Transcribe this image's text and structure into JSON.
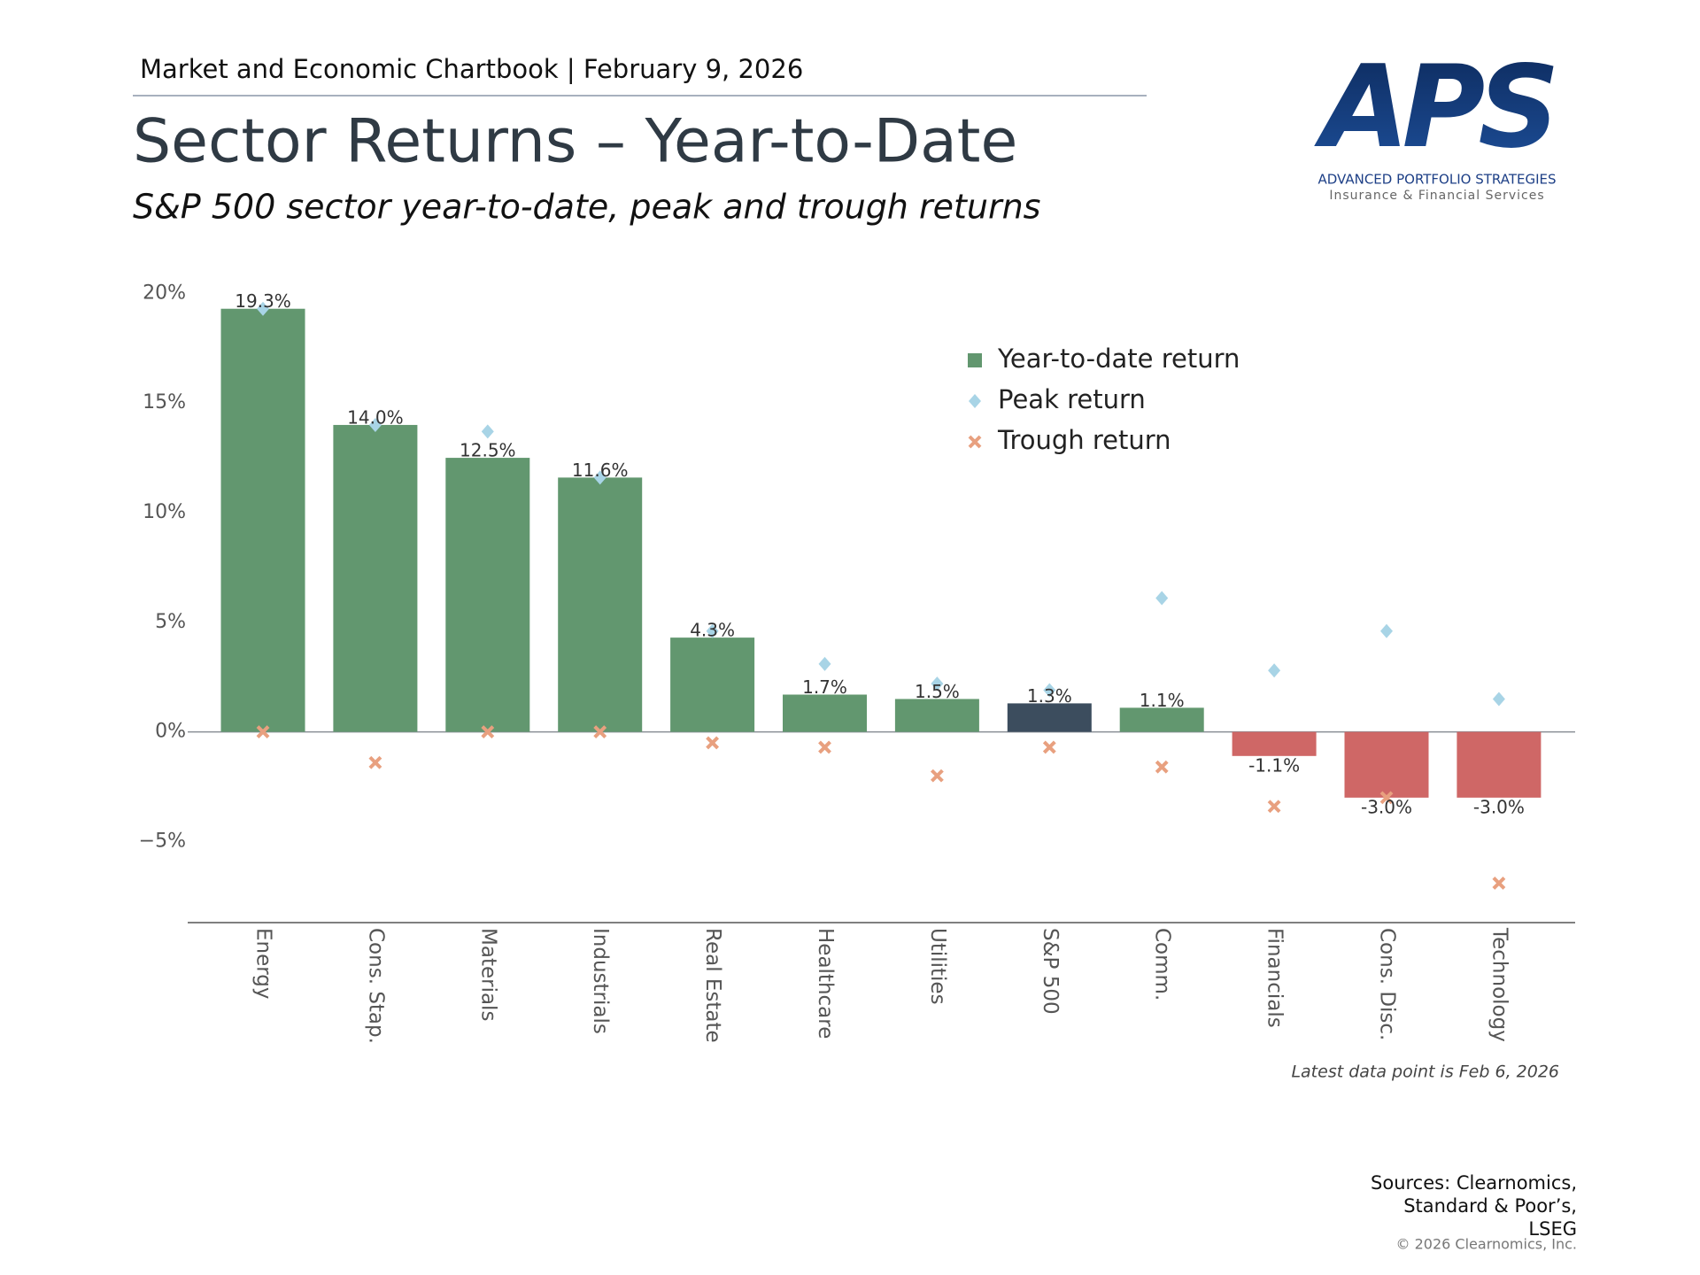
{
  "header": {
    "breadcrumb": "Market and Economic Chartbook | February 9, 2026",
    "logo_mark": "APS",
    "logo_name": "ADVANCED PORTFOLIO STRATEGIES",
    "logo_tagline": "Insurance & Financial Services"
  },
  "chart_data": {
    "type": "bar",
    "title": "Sector Returns – Year-to-Date",
    "subtitle": "S&P 500 sector year-to-date, peak and trough returns",
    "categories": [
      "Energy",
      "Cons. Stap.",
      "Materials",
      "Industrials",
      "Real Estate",
      "Healthcare",
      "Utilities",
      "S&P 500",
      "Comm.",
      "Financials",
      "Cons. Disc.",
      "Technology"
    ],
    "series": [
      {
        "name": "Year-to-date return",
        "marker": "bar",
        "color": "#62976f",
        "colors": [
          "#62976f",
          "#62976f",
          "#62976f",
          "#62976f",
          "#62976f",
          "#62976f",
          "#62976f",
          "#3c4d5e",
          "#62976f",
          "#cf6766",
          "#cf6766",
          "#cf6766"
        ],
        "values": [
          19.3,
          14.0,
          12.5,
          11.6,
          4.3,
          1.7,
          1.5,
          1.3,
          1.1,
          -1.1,
          -3.0,
          -3.0
        ],
        "value_labels": [
          "19.3%",
          "14.0%",
          "12.5%",
          "11.6%",
          "4.3%",
          "1.7%",
          "1.5%",
          "1.3%",
          "1.1%",
          "-1.1%",
          "-3.0%",
          "-3.0%"
        ]
      },
      {
        "name": "Peak return",
        "marker": "diamond",
        "color": "#a8d4e6",
        "values": [
          19.3,
          14.0,
          13.7,
          11.6,
          4.6,
          3.1,
          2.2,
          1.9,
          6.1,
          2.8,
          4.6,
          1.5
        ]
      },
      {
        "name": "Trough return",
        "marker": "x",
        "color": "#e8a07f",
        "values": [
          0,
          -1.4,
          0,
          0,
          -0.5,
          -0.7,
          -2.0,
          -0.7,
          -1.6,
          -3.4,
          -3.0,
          -6.9
        ]
      }
    ],
    "ylim": [
      -8.7,
      20.5
    ],
    "yticks": [
      {
        "value": -5,
        "label": "−5%"
      },
      {
        "value": 0,
        "label": "0%"
      },
      {
        "value": 5,
        "label": "5%"
      },
      {
        "value": 10,
        "label": "10%"
      },
      {
        "value": 15,
        "label": "15%"
      },
      {
        "value": 20,
        "label": "20%"
      }
    ],
    "legend": "upper-right",
    "note": "Latest data point is Feb 6, 2026"
  },
  "footer": {
    "sources": [
      "Sources: Clearnomics,",
      "Standard & Poor’s,",
      "LSEG"
    ],
    "copyright": "© 2026 Clearnomics, Inc."
  }
}
